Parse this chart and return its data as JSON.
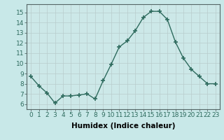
{
  "x": [
    0,
    1,
    2,
    3,
    4,
    5,
    6,
    7,
    8,
    9,
    10,
    11,
    12,
    13,
    14,
    15,
    16,
    17,
    18,
    19,
    20,
    21,
    22,
    23
  ],
  "y": [
    8.7,
    7.8,
    7.1,
    6.1,
    6.8,
    6.8,
    6.9,
    7.0,
    6.5,
    8.3,
    9.9,
    11.6,
    12.2,
    13.2,
    14.5,
    15.1,
    15.1,
    14.3,
    12.1,
    10.5,
    9.4,
    8.7,
    8.0,
    8.0
  ],
  "xlabel": "Humidex (Indice chaleur)",
  "ylim": [
    5.5,
    15.8
  ],
  "xlim": [
    -0.5,
    23.5
  ],
  "yticks": [
    6,
    7,
    8,
    9,
    10,
    11,
    12,
    13,
    14,
    15
  ],
  "xtick_labels": [
    "0",
    "1",
    "2",
    "3",
    "4",
    "5",
    "6",
    "7",
    "8",
    "9",
    "10",
    "11",
    "12",
    "13",
    "14",
    "15",
    "16",
    "17",
    "18",
    "19",
    "20",
    "21",
    "22",
    "23"
  ],
  "line_color": "#2e6b5e",
  "marker": "+",
  "marker_size": 5,
  "bg_color": "#c8e8e8",
  "plot_bg_color": "#cce8e8",
  "grid_color": "#b8cccc",
  "xlabel_fontsize": 7.5,
  "tick_fontsize": 6.5,
  "line_width": 1.0
}
